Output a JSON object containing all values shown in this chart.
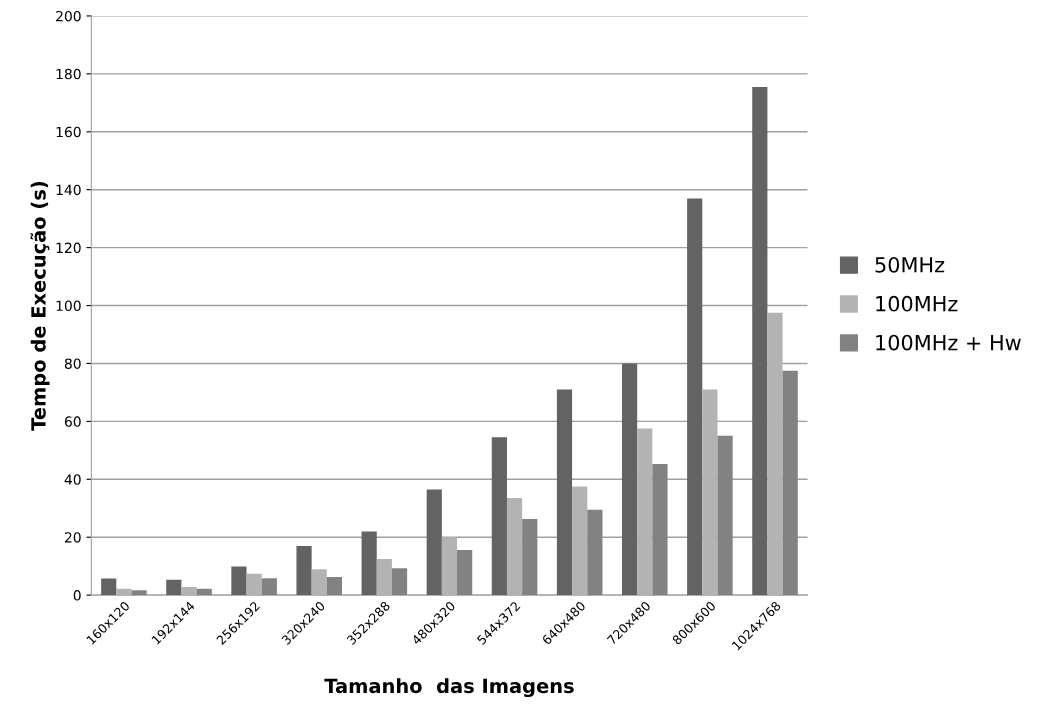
{
  "chart_data": {
    "type": "bar",
    "xlabel": "Tamanho  das Imagens",
    "ylabel": "Tempo de Execução (s)",
    "categories": [
      "160x120",
      "192x144",
      "256x192",
      "320x240",
      "352x288",
      "480x320",
      "544x372",
      "640x480",
      "720x480",
      "800x600",
      "1024x768"
    ],
    "series": [
      {
        "name": "50MHz",
        "color": "#636363",
        "values": [
          5.7,
          5.3,
          9.9,
          17,
          22,
          36.5,
          54.5,
          71,
          80,
          137,
          175.5
        ]
      },
      {
        "name": "100MHz",
        "color": "#b3b3b3",
        "values": [
          2.2,
          2.8,
          7.4,
          8.9,
          12.5,
          20,
          33.5,
          37.5,
          57.5,
          71,
          97.5
        ]
      },
      {
        "name": "100MHz + Hw",
        "color": "#828282",
        "values": [
          1.7,
          2.2,
          5.8,
          6.3,
          9.3,
          15.6,
          26.3,
          29.5,
          45.3,
          55,
          77.5
        ]
      }
    ],
    "ylim": [
      0,
      200
    ],
    "yticks": [
      0,
      20,
      40,
      60,
      80,
      100,
      120,
      140,
      160,
      180,
      200
    ],
    "grid": "y",
    "legend": "right"
  }
}
